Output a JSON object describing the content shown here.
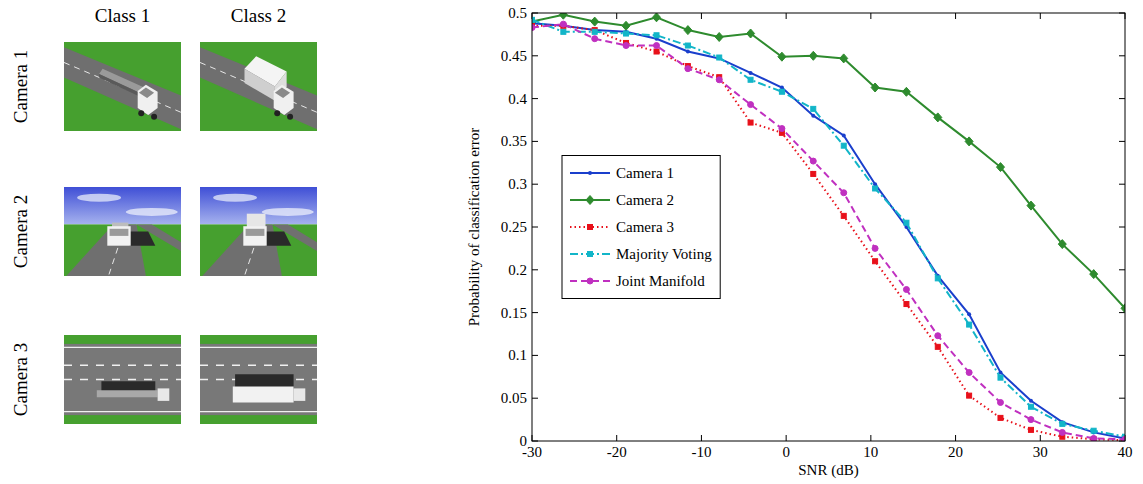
{
  "image_grid": {
    "columns": [
      "Class 1",
      "Class 2"
    ],
    "rows": [
      "Camera 1",
      "Camera 2",
      "Camera 3"
    ]
  },
  "chart_data": {
    "type": "line",
    "xlabel": "SNR (dB)",
    "ylabel": "Probability of classification error",
    "x": [
      -30,
      -26.3,
      -22.6,
      -18.9,
      -15.3,
      -11.6,
      -7.9,
      -4.2,
      -0.5,
      3.2,
      6.8,
      10.5,
      14.2,
      17.9,
      21.6,
      25.3,
      28.9,
      32.6,
      36.3,
      40
    ],
    "xlim": [
      -30,
      40
    ],
    "xticks": [
      -30,
      -20,
      -10,
      0,
      10,
      20,
      30,
      40
    ],
    "ylim": [
      0,
      0.5
    ],
    "yticks": [
      0,
      0.05,
      0.1,
      0.15,
      0.2,
      0.25,
      0.3,
      0.35,
      0.4,
      0.45,
      0.5
    ],
    "grid": false,
    "legend": "left",
    "series": [
      {
        "name": "Camera 1",
        "color": "#1a3fcc",
        "marker": "point",
        "line_style": "solid",
        "values": [
          0.488,
          0.485,
          0.48,
          0.478,
          0.47,
          0.455,
          0.447,
          0.43,
          0.413,
          0.38,
          0.357,
          0.3,
          0.25,
          0.193,
          0.148,
          0.08,
          0.047,
          0.022,
          0.01,
          0.003
        ]
      },
      {
        "name": "Camera 2",
        "color": "#2e8b2e",
        "marker": "diamond",
        "line_style": "solid",
        "values": [
          0.49,
          0.498,
          0.49,
          0.485,
          0.495,
          0.48,
          0.472,
          0.476,
          0.449,
          0.45,
          0.447,
          0.413,
          0.408,
          0.378,
          0.35,
          0.32,
          0.275,
          0.23,
          0.195,
          0.155
        ]
      },
      {
        "name": "Camera 3",
        "color": "#e8101a",
        "marker": "square",
        "line_style": "dotted",
        "values": [
          0.485,
          0.485,
          0.48,
          0.465,
          0.455,
          0.438,
          0.425,
          0.372,
          0.36,
          0.312,
          0.263,
          0.21,
          0.16,
          0.11,
          0.053,
          0.027,
          0.013,
          0.005,
          0.002,
          0.001
        ]
      },
      {
        "name": "Majority Voting",
        "color": "#12b5c8",
        "marker": "square",
        "line_style": "dashdot",
        "values": [
          0.492,
          0.478,
          0.478,
          0.476,
          0.474,
          0.462,
          0.448,
          0.422,
          0.408,
          0.388,
          0.345,
          0.295,
          0.255,
          0.19,
          0.136,
          0.074,
          0.04,
          0.02,
          0.012,
          0.005
        ]
      },
      {
        "name": "Joint Manifold",
        "color": "#c030c0",
        "marker": "circle",
        "line_style": "dashed",
        "values": [
          0.483,
          0.487,
          0.47,
          0.462,
          0.462,
          0.435,
          0.422,
          0.393,
          0.365,
          0.327,
          0.29,
          0.225,
          0.177,
          0.123,
          0.08,
          0.045,
          0.025,
          0.01,
          0.003,
          0.002
        ]
      }
    ]
  }
}
